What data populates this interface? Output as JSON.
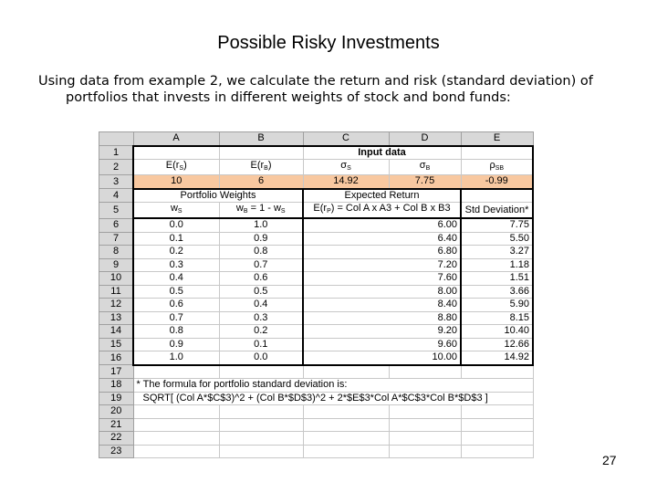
{
  "title": "Possible Risky Investments",
  "intro": "Using data from example 2, we calculate the return and risk (standard deviation) of portfolios that invests in different weights of stock and bond funds:",
  "page_number": "27",
  "sheet": {
    "col_headers": [
      "A",
      "B",
      "C",
      "D",
      "E"
    ],
    "row_numbers": [
      "1",
      "2",
      "3",
      "4",
      "5",
      "6",
      "7",
      "8",
      "9",
      "10",
      "11",
      "12",
      "13",
      "14",
      "15",
      "16",
      "17",
      "18",
      "19",
      "20",
      "21",
      "22",
      "23"
    ],
    "input_title": "Input data",
    "input_headers": {
      "a": "E(r",
      "a_sub": "S",
      "a_end": ")",
      "b": "E(r",
      "b_sub": "B",
      "b_end": ")",
      "c": "σ",
      "c_sub": "S",
      "d": "σ",
      "d_sub": "B",
      "e": "ρ",
      "e_sub": "SB"
    },
    "input_values": [
      "10",
      "6",
      "14.92",
      "7.75",
      "-0.99"
    ],
    "portfolio_weights": "Portfolio Weights",
    "expected_return": "Expected Return",
    "ws_label": "w",
    "ws_sub": "S",
    "wb_label": "w",
    "wb_sub": "B",
    "wb_rest": " = 1 - w",
    "wb_rest_sub": "S",
    "er_label": "E(r",
    "er_sub": "P",
    "er_rest": ") = Col A x A3 + Col B x B3",
    "std_label": "Std Deviation*",
    "rows": [
      [
        "0.0",
        "1.0",
        "6.00",
        "7.75"
      ],
      [
        "0.1",
        "0.9",
        "6.40",
        "5.50"
      ],
      [
        "0.2",
        "0.8",
        "6.80",
        "3.27"
      ],
      [
        "0.3",
        "0.7",
        "7.20",
        "1.18"
      ],
      [
        "0.4",
        "0.6",
        "7.60",
        "1.51"
      ],
      [
        "0.5",
        "0.5",
        "8.00",
        "3.66"
      ],
      [
        "0.6",
        "0.4",
        "8.40",
        "5.90"
      ],
      [
        "0.7",
        "0.3",
        "8.80",
        "8.15"
      ],
      [
        "0.8",
        "0.2",
        "9.20",
        "10.40"
      ],
      [
        "0.9",
        "0.1",
        "9.60",
        "12.66"
      ],
      [
        "1.0",
        "0.0",
        "10.00",
        "14.92"
      ]
    ],
    "note_line1": "* The formula for portfolio standard deviation is:",
    "note_line2": "SQRT[ (Col A*$C$3)^2 + (Col B*$D$3)^2 + 2*$E$3*Col A*$C$3*Col B*$D$3 ]",
    "highlight_color": "#f8c8a0"
  }
}
